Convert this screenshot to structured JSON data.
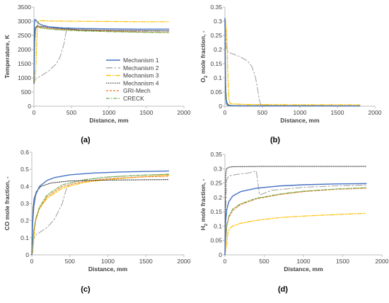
{
  "colors": {
    "Mechanism 1": "#4472C4",
    "Mechanism 2": "#A5A5A5",
    "Mechanism 3": "#FFC000",
    "Mechanism 4": "#404040",
    "GRI-Mech": "#ED7D31",
    "CRECK": "#70AD47"
  },
  "legend": {
    "placement": "center-right of panel (a)",
    "entries": [
      "Mechanism 1",
      "Mechanism 2",
      "Mechanism 3",
      "Mechanism 4",
      "GRI-Mech",
      "CRECK"
    ]
  },
  "chart_data": [
    {
      "type": "line",
      "panel": "(a)",
      "xlabel": "Distance, mm",
      "ylabel": "Temperature, K",
      "xlim": [
        0,
        2000
      ],
      "xticks": [
        0,
        500,
        1000,
        1500,
        2000
      ],
      "ylim": [
        0,
        3500
      ],
      "yticks": [
        0,
        500,
        1000,
        1500,
        2000,
        2500,
        3000,
        3500
      ],
      "grid": false,
      "series": [
        {
          "name": "Mechanism 1",
          "x": [
            0,
            5,
            15,
            30,
            60,
            100,
            200,
            400,
            700,
            1000,
            1400,
            1800
          ],
          "values": [
            800,
            2900,
            3070,
            3020,
            2930,
            2870,
            2800,
            2760,
            2740,
            2730,
            2720,
            2720
          ]
        },
        {
          "name": "Mechanism 2",
          "x": [
            0,
            10,
            50,
            100,
            200,
            300,
            350,
            400,
            430,
            450,
            500,
            700,
            1000,
            1400,
            1800
          ],
          "values": [
            800,
            950,
            1000,
            1080,
            1250,
            1500,
            1750,
            2200,
            2650,
            2780,
            2720,
            2680,
            2660,
            2650,
            2650
          ]
        },
        {
          "name": "Mechanism 3",
          "x": [
            0,
            15,
            30,
            45,
            60,
            100,
            200,
            500,
            1000,
            1500,
            1800
          ],
          "values": [
            800,
            900,
            1700,
            2800,
            3000,
            3020,
            3010,
            3000,
            2990,
            2980,
            2980
          ]
        },
        {
          "name": "Mechanism 4",
          "x": [
            0,
            10,
            20,
            40,
            80,
            150,
            300,
            600,
            1000,
            1400,
            1800
          ],
          "values": [
            800,
            2400,
            2780,
            2830,
            2820,
            2800,
            2750,
            2700,
            2680,
            2670,
            2660
          ]
        },
        {
          "name": "GRI-Mech",
          "x": [
            0,
            10,
            20,
            40,
            80,
            150,
            300,
            600,
            1000,
            1400,
            1800
          ],
          "values": [
            800,
            2300,
            2750,
            2830,
            2790,
            2760,
            2720,
            2680,
            2650,
            2620,
            2600
          ]
        },
        {
          "name": "CRECK",
          "x": [
            0,
            10,
            20,
            40,
            80,
            150,
            300,
            600,
            1000,
            1400,
            1800
          ],
          "values": [
            800,
            2250,
            2700,
            2800,
            2770,
            2740,
            2700,
            2660,
            2630,
            2610,
            2600
          ]
        }
      ]
    },
    {
      "type": "line",
      "panel": "(b)",
      "xlabel": "Distance, mm",
      "ylabel": "O2 mole fraction, -",
      "ylabel_main": "O",
      "ylabel_sub": "2",
      "ylabel_rest": " mole fraction, -",
      "xlim": [
        0,
        2000
      ],
      "xticks": [
        0,
        500,
        1000,
        1500,
        2000
      ],
      "ylim": [
        0,
        0.35
      ],
      "yticks": [
        0,
        0.05,
        0.1,
        0.15,
        0.2,
        0.25,
        0.3,
        0.35
      ],
      "grid": false,
      "series": [
        {
          "name": "Mechanism 1",
          "x": [
            0,
            4,
            8,
            15,
            30,
            60,
            200,
            1800
          ],
          "values": [
            0.31,
            0.2,
            0.07,
            0.02,
            0.006,
            0.002,
            0.001,
            0.001
          ]
        },
        {
          "name": "Mechanism 2",
          "x": [
            0,
            20,
            50,
            100,
            200,
            300,
            360,
            400,
            420,
            440,
            460,
            480,
            600,
            1800
          ],
          "values": [
            0.31,
            0.2,
            0.19,
            0.185,
            0.175,
            0.16,
            0.14,
            0.11,
            0.085,
            0.055,
            0.02,
            0.005,
            0.002,
            0.001
          ]
        },
        {
          "name": "Mechanism 3",
          "x": [
            0,
            10,
            25,
            40,
            55,
            70,
            100,
            300,
            1000,
            1800
          ],
          "values": [
            0.31,
            0.3,
            0.25,
            0.1,
            0.02,
            0.01,
            0.008,
            0.006,
            0.005,
            0.005
          ]
        },
        {
          "name": "Mechanism 4",
          "x": [
            0,
            4,
            10,
            20,
            40,
            100,
            1800
          ],
          "values": [
            0.31,
            0.12,
            0.03,
            0.008,
            0.002,
            0.001,
            0.001
          ]
        },
        {
          "name": "GRI-Mech",
          "x": [
            0,
            5,
            12,
            25,
            50,
            100,
            1800
          ],
          "values": [
            0.31,
            0.16,
            0.05,
            0.012,
            0.004,
            0.002,
            0.001
          ]
        },
        {
          "name": "CRECK",
          "x": [
            0,
            5,
            12,
            25,
            50,
            100,
            1800
          ],
          "values": [
            0.31,
            0.17,
            0.06,
            0.015,
            0.005,
            0.002,
            0.001
          ]
        }
      ]
    },
    {
      "type": "line",
      "panel": "(c)",
      "xlabel": "Distance, mm",
      "ylabel": "CO mole fraction, -",
      "xlim": [
        0,
        2000
      ],
      "xticks": [
        0,
        500,
        1000,
        1500,
        2000
      ],
      "ylim": [
        0,
        0.6
      ],
      "yticks": [
        0,
        0.1,
        0.2,
        0.3,
        0.4,
        0.5,
        0.6
      ],
      "grid": false,
      "series": [
        {
          "name": "Mechanism 1",
          "x": [
            0,
            10,
            25,
            50,
            100,
            200,
            300,
            500,
            800,
            1200,
            1800
          ],
          "values": [
            0,
            0.18,
            0.28,
            0.35,
            0.4,
            0.435,
            0.452,
            0.468,
            0.478,
            0.485,
            0.49
          ]
        },
        {
          "name": "Mechanism 2",
          "x": [
            0,
            20,
            60,
            100,
            200,
            300,
            400,
            450,
            500,
            700,
            1000,
            1400,
            1800
          ],
          "values": [
            0,
            0.09,
            0.12,
            0.13,
            0.16,
            0.21,
            0.3,
            0.38,
            0.42,
            0.44,
            0.455,
            0.465,
            0.47
          ]
        },
        {
          "name": "Mechanism 3",
          "x": [
            0,
            15,
            30,
            50,
            100,
            200,
            400,
            700,
            1000,
            1400,
            1800
          ],
          "values": [
            0,
            0.02,
            0.12,
            0.2,
            0.27,
            0.33,
            0.39,
            0.425,
            0.44,
            0.455,
            0.465
          ]
        },
        {
          "name": "Mechanism 4",
          "x": [
            0,
            5,
            15,
            30,
            60,
            120,
            250,
            500,
            1000,
            1800
          ],
          "values": [
            0,
            0.15,
            0.27,
            0.33,
            0.37,
            0.4,
            0.42,
            0.432,
            0.437,
            0.44
          ]
        },
        {
          "name": "GRI-Mech",
          "x": [
            0,
            10,
            25,
            50,
            100,
            200,
            400,
            700,
            1000,
            1400,
            1800
          ],
          "values": [
            0,
            0.06,
            0.13,
            0.2,
            0.27,
            0.34,
            0.4,
            0.43,
            0.445,
            0.455,
            0.46
          ]
        },
        {
          "name": "CRECK",
          "x": [
            0,
            10,
            25,
            50,
            100,
            200,
            400,
            700,
            1000,
            1400,
            1800
          ],
          "values": [
            0,
            0.07,
            0.14,
            0.21,
            0.28,
            0.35,
            0.41,
            0.44,
            0.455,
            0.465,
            0.472
          ]
        }
      ]
    },
    {
      "type": "line",
      "panel": "(d)",
      "xlabel": "Distance, mm",
      "ylabel": "H2 mole fraction, -",
      "ylabel_main": "H",
      "ylabel_sub": "2",
      "ylabel_rest": " mole fraction, -",
      "xlim": [
        0,
        2000
      ],
      "xticks": [
        0,
        500,
        1000,
        1500,
        2000
      ],
      "ylim": [
        0,
        0.35
      ],
      "yticks": [
        0,
        0.05,
        0.1,
        0.15,
        0.2,
        0.25,
        0.3,
        0.35
      ],
      "grid": false,
      "series": [
        {
          "name": "Mechanism 1",
          "x": [
            0,
            10,
            25,
            50,
            100,
            200,
            400,
            700,
            1000,
            1400,
            1800
          ],
          "values": [
            0,
            0.12,
            0.16,
            0.185,
            0.205,
            0.22,
            0.232,
            0.24,
            0.244,
            0.247,
            0.248
          ]
        },
        {
          "name": "Mechanism 2",
          "x": [
            0,
            20,
            50,
            150,
            300,
            400,
            420,
            440,
            460,
            600,
            1000,
            1400,
            1800
          ],
          "values": [
            0,
            0.26,
            0.275,
            0.28,
            0.285,
            0.292,
            0.25,
            0.21,
            0.21,
            0.225,
            0.235,
            0.24,
            0.243
          ]
        },
        {
          "name": "Mechanism 3",
          "x": [
            0,
            20,
            40,
            70,
            100,
            200,
            400,
            700,
            1000,
            1400,
            1800
          ],
          "values": [
            0,
            0.03,
            0.08,
            0.095,
            0.1,
            0.11,
            0.12,
            0.13,
            0.135,
            0.14,
            0.145
          ]
        },
        {
          "name": "Mechanism 4",
          "x": [
            0,
            5,
            10,
            20,
            50,
            100,
            500,
            1000,
            1800
          ],
          "values": [
            0,
            0.2,
            0.28,
            0.3,
            0.305,
            0.307,
            0.308,
            0.308,
            0.308
          ]
        },
        {
          "name": "GRI-Mech",
          "x": [
            0,
            10,
            25,
            50,
            100,
            200,
            400,
            700,
            1000,
            1400,
            1800
          ],
          "values": [
            0,
            0.05,
            0.1,
            0.13,
            0.155,
            0.175,
            0.195,
            0.21,
            0.22,
            0.228,
            0.232
          ]
        },
        {
          "name": "CRECK",
          "x": [
            0,
            10,
            25,
            50,
            100,
            200,
            400,
            700,
            1000,
            1400,
            1800
          ],
          "values": [
            0,
            0.055,
            0.105,
            0.135,
            0.16,
            0.178,
            0.197,
            0.212,
            0.222,
            0.229,
            0.234
          ]
        }
      ]
    }
  ]
}
